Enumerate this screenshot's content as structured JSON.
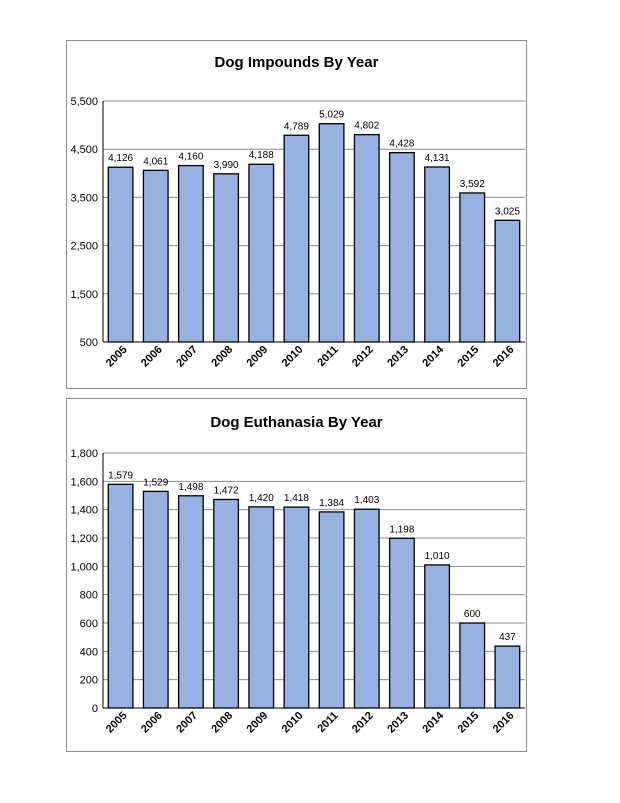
{
  "chart_data": [
    {
      "type": "bar",
      "title": "Dog Impounds By Year",
      "xlabel": "",
      "ylabel": "",
      "categories": [
        "2005",
        "2006",
        "2007",
        "2008",
        "2009",
        "2010",
        "2011",
        "2012",
        "2013",
        "2014",
        "2015",
        "2016"
      ],
      "values": [
        4126,
        4061,
        4160,
        3990,
        4188,
        4789,
        5029,
        4802,
        4428,
        4131,
        3592,
        3025
      ],
      "value_labels": [
        "4,126",
        "4,061",
        "4,160",
        "3,990",
        "4,188",
        "4,789",
        "5,029",
        "4,802",
        "4,428",
        "4,131",
        "3,592",
        "3,025"
      ],
      "ylim": [
        500,
        5500
      ],
      "yticks": [
        500,
        1500,
        2500,
        3500,
        4500,
        5500
      ],
      "ytick_labels": [
        "500",
        "1,500",
        "2,500",
        "3,500",
        "4,500",
        "5,500"
      ],
      "grid": true,
      "legend": "none",
      "bar_color": "#97b1e0"
    },
    {
      "type": "bar",
      "title": "Dog Euthanasia By Year",
      "xlabel": "",
      "ylabel": "",
      "categories": [
        "2005",
        "2006",
        "2007",
        "2008",
        "2009",
        "2010",
        "2011",
        "2012",
        "2013",
        "2014",
        "2015",
        "2016"
      ],
      "values": [
        1579,
        1529,
        1498,
        1472,
        1420,
        1418,
        1384,
        1403,
        1198,
        1010,
        600,
        437
      ],
      "value_labels": [
        "1,579",
        "1,529",
        "1,498",
        "1,472",
        "1,420",
        "1,418",
        "1,384",
        "1,403",
        "1,198",
        "1,010",
        "600",
        "437"
      ],
      "ylim": [
        0,
        1800
      ],
      "yticks": [
        0,
        200,
        400,
        600,
        800,
        1000,
        1200,
        1400,
        1600,
        1800
      ],
      "ytick_labels": [
        "0",
        "200",
        "400",
        "600",
        "800",
        "1,000",
        "1,200",
        "1,400",
        "1,600",
        "1,800"
      ],
      "grid": true,
      "legend": "none",
      "bar_color": "#97b1e0"
    }
  ]
}
